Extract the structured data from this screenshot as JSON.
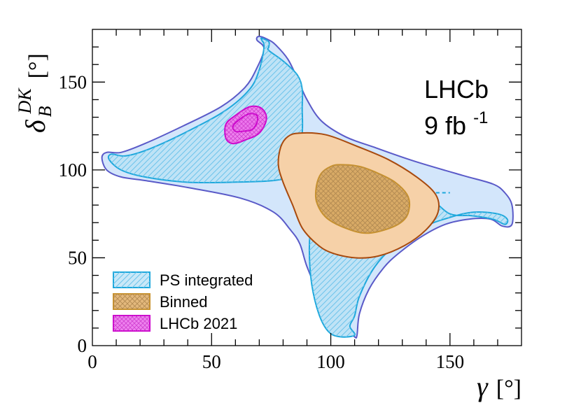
{
  "chart_data": {
    "type": "contour",
    "xlabel": "γ [°]",
    "ylabel": "δ_B^DK [°]",
    "xlabel_symbol": "γ",
    "xlabel_unit": "[°]",
    "ylabel_symbol": "δ",
    "ylabel_sub": "B",
    "ylabel_sup": "DK",
    "ylabel_unit": "[°]",
    "xlim": [
      0,
      180
    ],
    "ylim": [
      0,
      180
    ],
    "xticks": [
      0,
      50,
      100,
      150
    ],
    "yticks": [
      0,
      50,
      100,
      150
    ],
    "xtick_labels": [
      "0",
      "50",
      "100",
      "150"
    ],
    "ytick_labels": [
      "0",
      "50",
      "100",
      "150"
    ],
    "annotation": {
      "experiment": "LHCb",
      "lumi_value": "9 fb",
      "lumi_exp": "-1"
    },
    "legend_position": "bottom-left",
    "legend": [
      {
        "label": "PS integrated",
        "fill": "#c9e8f8",
        "edge": "#1ea8dc",
        "pattern": "hatch"
      },
      {
        "label": "Binned",
        "fill": "#e3b87c",
        "edge": "#c8922e",
        "pattern": "cross"
      },
      {
        "label": "LHCb 2021",
        "fill": "#ee82ee",
        "edge": "#cc00cc",
        "pattern": "cross"
      }
    ],
    "series": [
      {
        "name": "PS integrated 2σ",
        "fill": "#d3e6fb",
        "edge": "#5a5ac8",
        "pattern": "none",
        "edge_dash": "none",
        "points": [
          [
            70,
            176
          ],
          [
            74,
            174
          ],
          [
            77,
            171
          ],
          [
            82,
            163
          ],
          [
            86,
            152
          ],
          [
            90,
            140
          ],
          [
            96,
            128
          ],
          [
            106,
            119
          ],
          [
            118,
            113
          ],
          [
            135,
            105
          ],
          [
            155,
            97
          ],
          [
            168,
            92
          ],
          [
            173,
            87
          ],
          [
            176,
            80
          ],
          [
            176,
            69
          ],
          [
            172,
            68
          ],
          [
            167,
            72
          ],
          [
            158,
            72
          ],
          [
            148,
            69
          ],
          [
            138,
            62
          ],
          [
            128,
            52
          ],
          [
            122,
            44
          ],
          [
            116,
            32
          ],
          [
            112,
            18
          ],
          [
            111,
            6
          ],
          [
            110,
            5
          ],
          [
            106,
            11
          ],
          [
            101,
            18
          ],
          [
            95,
            30
          ],
          [
            90,
            45
          ],
          [
            87,
            58
          ],
          [
            83,
            66
          ],
          [
            76,
            76
          ],
          [
            62,
            84
          ],
          [
            40,
            90
          ],
          [
            22,
            94
          ],
          [
            12,
            96
          ],
          [
            6,
            100
          ],
          [
            4,
            107
          ],
          [
            6,
            110
          ],
          [
            12,
            110
          ],
          [
            22,
            115
          ],
          [
            38,
            125
          ],
          [
            54,
            136
          ],
          [
            64,
            147
          ],
          [
            69,
            158
          ],
          [
            72,
            169
          ],
          [
            69,
            174
          ]
        ]
      },
      {
        "name": "PS integrated 1σ upper",
        "fill": "#bfe3f6",
        "edge": "#1ea8dc",
        "pattern": "hatch",
        "edge_dash": "none",
        "points": [
          [
            71,
            175
          ],
          [
            74,
            173
          ],
          [
            74,
            170
          ],
          [
            74,
            168
          ],
          [
            80,
            162
          ],
          [
            86,
            154
          ],
          [
            88,
            146
          ],
          [
            88,
            135
          ],
          [
            88,
            121
          ],
          [
            86,
            105
          ],
          [
            84,
            97
          ],
          [
            76,
            94
          ],
          [
            58,
            93
          ],
          [
            40,
            93
          ],
          [
            22,
            96
          ],
          [
            12,
            100
          ],
          [
            7,
            106
          ],
          [
            8,
            109
          ],
          [
            14,
            108
          ],
          [
            24,
            112
          ],
          [
            40,
            122
          ],
          [
            56,
            134
          ],
          [
            66,
            146
          ],
          [
            70,
            157
          ],
          [
            72,
            170
          ],
          [
            71,
            174
          ]
        ]
      },
      {
        "name": "PS integrated 1σ lower",
        "fill": "#bfe3f6",
        "edge": "#1ea8dc",
        "pattern": "hatch",
        "edge_dash": "none",
        "points": [
          [
            110,
            6
          ],
          [
            108,
            11
          ],
          [
            110,
            17
          ],
          [
            112,
            28
          ],
          [
            118,
            44
          ],
          [
            126,
            56
          ],
          [
            138,
            67
          ],
          [
            150,
            73
          ],
          [
            160,
            76
          ],
          [
            170,
            75
          ],
          [
            174,
            72
          ],
          [
            173,
            69
          ],
          [
            168,
            72
          ],
          [
            159,
            74
          ],
          [
            150,
            75
          ],
          [
            140,
            84
          ],
          [
            120,
            87
          ],
          [
            102,
            87
          ],
          [
            95,
            82
          ],
          [
            92,
            70
          ],
          [
            91,
            55
          ],
          [
            92,
            35
          ],
          [
            95,
            18
          ],
          [
            99,
            8
          ],
          [
            104,
            5
          ]
        ]
      },
      {
        "name": "PS integrated 1σ hidden upper",
        "fill": "none",
        "edge": "#1ea8dc",
        "pattern": "none",
        "edge_dash": "5,4",
        "points": [
          [
            88,
            121
          ],
          [
            87,
            110
          ],
          [
            85,
            103
          ],
          [
            80,
            97
          ]
        ]
      },
      {
        "name": "PS integrated 1σ hidden lower",
        "fill": "none",
        "edge": "#1ea8dc",
        "pattern": "none",
        "edge_dash": "5,4",
        "points": [
          [
            92,
            65
          ],
          [
            93,
            72
          ],
          [
            97,
            80
          ],
          [
            103,
            85
          ],
          [
            112,
            87
          ],
          [
            130,
            87
          ],
          [
            150,
            87
          ]
        ]
      },
      {
        "name": "Binned 2σ",
        "fill": "#f6d1a8",
        "edge": "#a84a0e",
        "pattern": "none",
        "edge_dash": "none",
        "points": [
          [
            87,
            121
          ],
          [
            98,
            120
          ],
          [
            110,
            114
          ],
          [
            124,
            106
          ],
          [
            136,
            96
          ],
          [
            144,
            86
          ],
          [
            145,
            76
          ],
          [
            140,
            66
          ],
          [
            131,
            57
          ],
          [
            120,
            51
          ],
          [
            110,
            50
          ],
          [
            100,
            53
          ],
          [
            94,
            58
          ],
          [
            88,
            67
          ],
          [
            84,
            80
          ],
          [
            80,
            93
          ],
          [
            78,
            103
          ],
          [
            79,
            113
          ],
          [
            82,
            119
          ]
        ]
      },
      {
        "name": "Binned 1σ",
        "fill": "#d8aa66",
        "edge": "#c8922e",
        "pattern": "cross",
        "edge_dash": "none",
        "points": [
          [
            104,
            103
          ],
          [
            112,
            102
          ],
          [
            120,
            98
          ],
          [
            127,
            93
          ],
          [
            132,
            86
          ],
          [
            133,
            79
          ],
          [
            131,
            72
          ],
          [
            125,
            67
          ],
          [
            115,
            64
          ],
          [
            106,
            67
          ],
          [
            98,
            73
          ],
          [
            94,
            82
          ],
          [
            94,
            91
          ],
          [
            96,
            98
          ],
          [
            100,
            102
          ]
        ]
      },
      {
        "name": "LHCb 2021 2σ",
        "fill": "#ee82ee",
        "edge": "#cc00cc",
        "pattern": "cross",
        "edge_dash": "none",
        "points": [
          [
            66,
            136
          ],
          [
            71,
            135
          ],
          [
            73,
            129
          ],
          [
            70,
            121
          ],
          [
            64,
            117
          ],
          [
            59,
            115
          ],
          [
            56,
            118
          ],
          [
            56,
            126
          ],
          [
            60,
            131
          ]
        ]
      },
      {
        "name": "LHCb 2021 1σ",
        "fill": "#ec78ec",
        "edge": "#cc00cc",
        "pattern": "cross",
        "edge_dash": "none",
        "points": [
          [
            66,
            132
          ],
          [
            69,
            131
          ],
          [
            69,
            127
          ],
          [
            67,
            123
          ],
          [
            63,
            122
          ],
          [
            60,
            122
          ],
          [
            59,
            125
          ],
          [
            62,
            129
          ]
        ]
      }
    ]
  }
}
